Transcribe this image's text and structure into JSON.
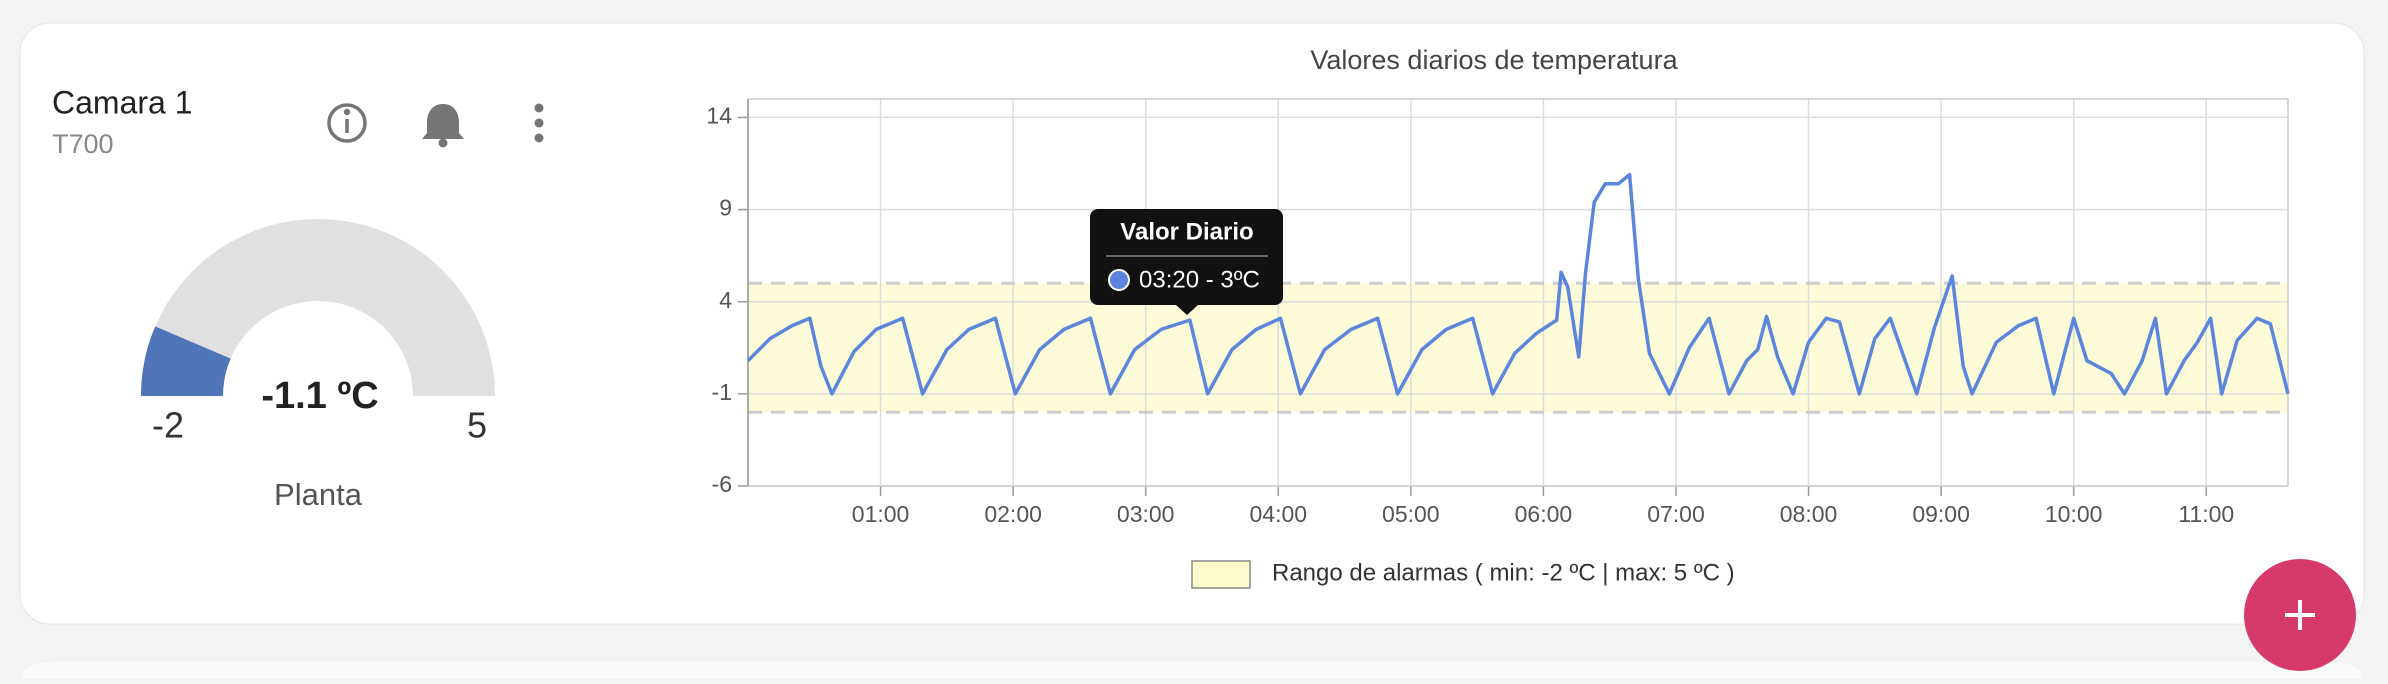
{
  "card": {
    "title": "Camara 1",
    "subtitle": "T700"
  },
  "gauge": {
    "min": -2,
    "max": 5,
    "value": -1.1,
    "value_label": "-1.1 ºC",
    "name": "Planta"
  },
  "chart_data": {
    "type": "line",
    "title": "Valores diarios de temperatura",
    "x": [
      0,
      10,
      20,
      28,
      33,
      38,
      48,
      58,
      70,
      79,
      90,
      100,
      112,
      121,
      132,
      143,
      155,
      164,
      175,
      187,
      200,
      208,
      219,
      230,
      241,
      250,
      261,
      273,
      285,
      294,
      305,
      316,
      328,
      337,
      347,
      357,
      366,
      368,
      371,
      376,
      379,
      383,
      388,
      394,
      399,
      403,
      408,
      417,
      426,
      435,
      444,
      452,
      457,
      461,
      466,
      473,
      480,
      488,
      494,
      503,
      510,
      517,
      529,
      537,
      545,
      550,
      554,
      565,
      575,
      583,
      591,
      600,
      606,
      617,
      623,
      631,
      637,
      642,
      650,
      656,
      662,
      667,
      674,
      683,
      689,
      697
    ],
    "series": [
      {
        "name": "Valor Diario",
        "color": "#5b86dc",
        "values": [
          0.8,
          2.0,
          2.7,
          3.1,
          0.5,
          -1,
          1.3,
          2.5,
          3.1,
          -1,
          1.4,
          2.5,
          3.1,
          -1,
          1.4,
          2.5,
          3.1,
          -1,
          1.4,
          2.5,
          3,
          -1,
          1.4,
          2.5,
          3.1,
          -1,
          1.4,
          2.5,
          3.1,
          -1,
          1.4,
          2.5,
          3.1,
          -1,
          1.2,
          2.3,
          3.0,
          5.6,
          4.8,
          1.0,
          5.5,
          9.4,
          10.4,
          10.4,
          10.9,
          5.2,
          1.2,
          -1,
          1.5,
          3.1,
          -1,
          0.8,
          1.4,
          3.2,
          1.0,
          -1,
          1.8,
          3.1,
          2.9,
          -1,
          2.0,
          3.1,
          -1,
          2.6,
          5.4,
          0.5,
          -1,
          1.8,
          2.7,
          3.1,
          -1,
          3.1,
          0.8,
          0.1,
          -1,
          0.8,
          3.1,
          -1,
          0.8,
          1.8,
          3.1,
          -1,
          1.9,
          3.1,
          2.8,
          -1
        ]
      }
    ],
    "xlim": [
      0,
      697
    ],
    "ylim": [
      -6,
      15
    ],
    "xticks": [
      {
        "value": 60,
        "label": "01:00"
      },
      {
        "value": 120,
        "label": "02:00"
      },
      {
        "value": 180,
        "label": "03:00"
      },
      {
        "value": 240,
        "label": "04:00"
      },
      {
        "value": 300,
        "label": "05:00"
      },
      {
        "value": 360,
        "label": "06:00"
      },
      {
        "value": 420,
        "label": "07:00"
      },
      {
        "value": 480,
        "label": "08:00"
      },
      {
        "value": 540,
        "label": "09:00"
      },
      {
        "value": 600,
        "label": "10:00"
      },
      {
        "value": 660,
        "label": "11:00"
      }
    ],
    "yticks": [
      -6,
      -1,
      4,
      9,
      14
    ],
    "grid": true,
    "alarm_range": {
      "min": -2,
      "max": 5,
      "label": "Rango de alarmas ( min: -2 ºC | max: 5 ºC )"
    },
    "tooltip": {
      "title": "Valor Diario",
      "text": "03:20 - 3ºC"
    }
  }
}
